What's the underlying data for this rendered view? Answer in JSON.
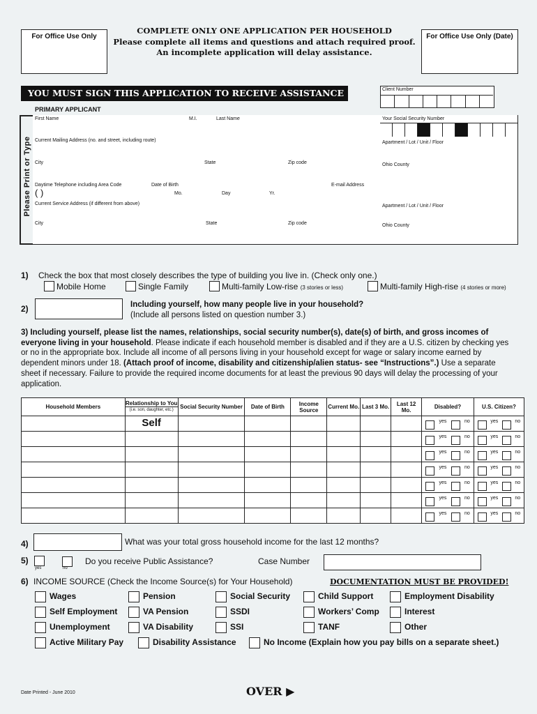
{
  "header": {
    "office_use_left": "For Office Use Only",
    "office_use_right": "For Office Use Only (Date)",
    "line1": "COMPLETE ONLY ONE APPLICATION PER HOUSEHOLD",
    "line2": "Please complete all items and questions and attach required proof.",
    "line3": "An incomplete application will delay assistance."
  },
  "sign_banner": "YOU MUST SIGN THIS APPLICATION TO RECEIVE ASSISTANCE",
  "client_number_label": "Client Number",
  "primary_applicant": {
    "heading": "PRIMARY APPLICANT",
    "side_label": "Please Print or Type",
    "first_name": "First Name",
    "mi": "M.I.",
    "last_name": "Last Name",
    "ssn": "Your Social Security Number",
    "mailing_address": "Current Mailing Address  (no. and street, including route)",
    "apartment": "Apartment / Lot / Unit / Floor",
    "city": "City",
    "state": "State",
    "zip": "Zip code",
    "county": "Ohio County",
    "phone": "Daytime Telephone including Area Code",
    "phone_parens": "(      )",
    "dob": "Date of Birth",
    "dob_mo": "Mo.",
    "dob_day": "Day",
    "dob_yr": "Yr.",
    "email": "E-mail Address",
    "service_address": "Current Service  Address  (if different from above)"
  },
  "q1": {
    "number": "1)",
    "text": "Check the box that most closely describes the type of building you live in. (Check only one.)",
    "options": [
      "Mobile Home",
      "Single Family",
      "Multi-family Low-rise",
      "Multi-family High-rise"
    ],
    "notes": [
      "(3 stories or less)",
      "(4 stories or more)"
    ]
  },
  "q2": {
    "number": "2)",
    "text": "Including yourself, how many people live in your household?",
    "subtext": "(Include all persons listed on question number 3.)"
  },
  "q3": {
    "bold1": "3) Including yourself, please list the names, relationships, social security number(s), date(s) of birth, and gross incomes of everyone living in your household",
    "normal1": ". Please indicate if each household member is disabled and if they are a U.S. citizen by checking yes or no in the appropriate box. Include all income of all persons living in your household except for wage or salary income earned by dependent minors under 18. ",
    "bold2": "(Attach proof of income, disability and citizenship/alien status- see “Instructions”.)",
    "normal2": " Use a separate sheet if necessary. Failure to provide the required income documents for at least the previous 90 days will delay the processing of your application."
  },
  "household_table": {
    "headers": [
      "Household Members",
      "Relationship to You",
      "Social Security Number",
      "Date of Birth",
      "Income Source",
      "Current Mo.",
      "Last 3 Mo.",
      "Last 12 Mo.",
      "Disabled?",
      "U.S. Citizen?"
    ],
    "relationship_note": "(i.e. son, daughter, etc.)",
    "first_row_relationship": "Self",
    "yes": "yes",
    "no": "no",
    "row_count": 7
  },
  "q4": {
    "number": "4)",
    "text": "What was your total gross household income for the last 12 months?"
  },
  "q5": {
    "number": "5)",
    "yes": "yes",
    "no": "no",
    "text": "Do you receive Public Assistance?",
    "case_number": "Case Number"
  },
  "q6": {
    "number": "6)",
    "text": "INCOME SOURCE (Check the Income Source(s) for Your Household)",
    "documentation": "DOCUMENTATION MUST BE PROVIDED!",
    "options": [
      "Wages",
      "Pension",
      "Social Security",
      "Child Support",
      "Employment Disability",
      "Self Employment",
      "VA Pension",
      "SSDI",
      "Workers’ Comp",
      "Interest",
      "Unemployment",
      "VA Disability",
      "SSI",
      "TANF",
      "Other",
      "Active Military Pay",
      "Disability Assistance",
      "No Income (Explain how you pay bills on a separate sheet.)"
    ]
  },
  "footer": {
    "date_printed": "Date Printed - June 2010",
    "over": "OVER"
  }
}
